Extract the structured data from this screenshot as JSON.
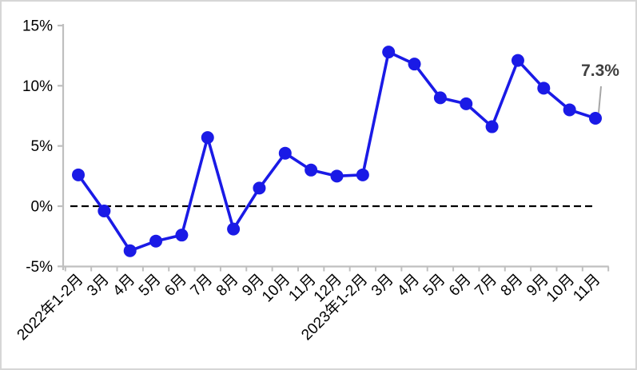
{
  "chart_data": {
    "type": "line",
    "title": "",
    "xlabel": "",
    "ylabel": "",
    "categories": [
      "2022年1-2月",
      "3月",
      "4月",
      "5月",
      "6月",
      "7月",
      "8月",
      "9月",
      "10月",
      "11月",
      "12月",
      "2023年1-2月",
      "3月",
      "4月",
      "5月",
      "6月",
      "7月",
      "8月",
      "9月",
      "10月",
      "11月"
    ],
    "values": [
      2.6,
      -0.4,
      -3.7,
      -2.9,
      -2.4,
      5.7,
      -1.9,
      1.5,
      4.4,
      3.0,
      2.5,
      2.6,
      12.8,
      11.8,
      9.0,
      8.5,
      6.6,
      12.1,
      9.8,
      8.0,
      7.3
    ],
    "ylim": [
      -5,
      15
    ],
    "y_ticks": [
      {
        "value": 15,
        "label": "15%"
      },
      {
        "value": 10,
        "label": "10%"
      },
      {
        "value": 5,
        "label": "5%"
      },
      {
        "value": 0,
        "label": "0%"
      },
      {
        "value": -5,
        "label": "-5%"
      }
    ],
    "zero_baseline": {
      "value": 0,
      "style": "dashed"
    },
    "grid": "off",
    "legend": "none",
    "annotation": {
      "text": "7.3%",
      "target_index": 20
    },
    "colors": {
      "line": "#1a1ae6",
      "marker": "#1a1ae6",
      "axis": "#bfbfbf",
      "tick_text": "#000000",
      "zero_line": "#000000",
      "annotation_text": "#404040",
      "leader_line": "#a6a6a6",
      "frame_border": "#d6d6d6",
      "background": "#ffffff"
    }
  }
}
